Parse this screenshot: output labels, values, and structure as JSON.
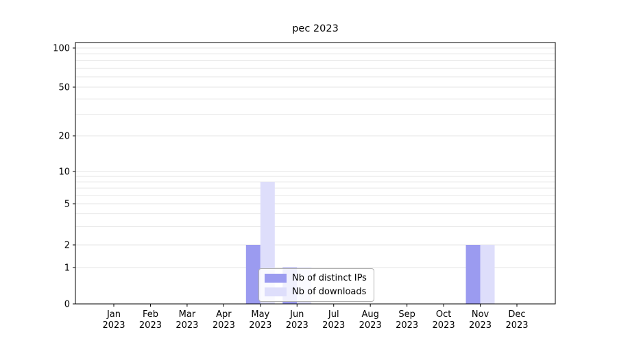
{
  "chart_data": {
    "type": "bar",
    "title": "pec 2023",
    "months": [
      "Jan",
      "Feb",
      "Mar",
      "Apr",
      "May",
      "Jun",
      "Jul",
      "Aug",
      "Sep",
      "Oct",
      "Nov",
      "Dec"
    ],
    "year": "2023",
    "xlabel": "",
    "ylabel": "",
    "yscale": "symlog",
    "yticks": [
      0,
      1,
      2,
      5,
      10,
      20,
      50,
      100
    ],
    "ylim": [
      0,
      100
    ],
    "grid": "horizontal-minor-log",
    "legend_position": "lower-center-inside",
    "series": [
      {
        "name": "Nb of distinct IPs",
        "color": "#9b9bf0",
        "values": [
          0,
          0,
          0,
          0,
          2,
          1,
          0,
          0,
          0,
          0,
          2,
          0
        ]
      },
      {
        "name": "Nb of downloads",
        "color": "#dedefb",
        "values": [
          0,
          0,
          0,
          0,
          8,
          1,
          0,
          0,
          0,
          0,
          2,
          0
        ]
      }
    ]
  }
}
